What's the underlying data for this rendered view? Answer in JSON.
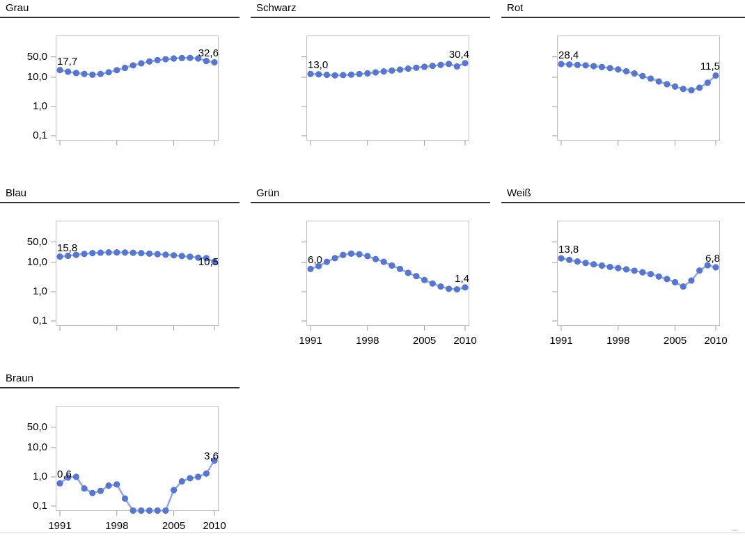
{
  "colors": {
    "marker": "#5676d4",
    "line": "#8ea6e8",
    "plot_border": "#c0c0c0",
    "tick": "#9b9b9b",
    "title_rule": "#2f2f2f",
    "text": "#000000",
    "bottom_edge": "#d9d9d9",
    "bottom_edge_tick": "#a8a8a8"
  },
  "axes": {
    "y_scale": "log",
    "y_ticks": [
      50,
      10,
      1,
      0.1
    ],
    "y_tick_labels": [
      "50,0",
      "10,0",
      "1,0",
      "0,1"
    ],
    "y_range_displayed": [
      0.07,
      170
    ],
    "x_range": [
      1991,
      2010
    ],
    "x_tick_years": [
      1991,
      1998,
      2005,
      2010
    ],
    "x_tick_labels": [
      "1991",
      "1998",
      "2005",
      "2010"
    ],
    "x_years": [
      1991,
      1992,
      1993,
      1994,
      1995,
      1996,
      1997,
      1998,
      1999,
      2000,
      2001,
      2002,
      2003,
      2004,
      2005,
      2006,
      2007,
      2008,
      2009,
      2010
    ],
    "grid": false,
    "legend": false
  },
  "chart_data": [
    {
      "type": "line",
      "title": "Grau",
      "slug": "grau",
      "row": 0,
      "col": 0,
      "show_y_tick_labels": true,
      "show_x_tick_labels": false,
      "first_point_label": "17,7",
      "last_point_label": "32,6",
      "values": [
        17.7,
        15.5,
        14.0,
        13.0,
        12.2,
        13.0,
        14.8,
        17.5,
        21.0,
        25.5,
        30.0,
        34.5,
        38.5,
        41.5,
        44.0,
        45.5,
        46.0,
        44.0,
        36.0,
        32.6
      ]
    },
    {
      "type": "line",
      "title": "Schwarz",
      "slug": "schwarz",
      "row": 0,
      "col": 1,
      "show_y_tick_labels": false,
      "show_x_tick_labels": false,
      "first_point_label": "13,0",
      "last_point_label": "30,4",
      "values": [
        13.0,
        12.6,
        12.1,
        11.6,
        11.9,
        12.3,
        12.9,
        13.6,
        14.7,
        15.8,
        17.0,
        18.3,
        19.7,
        21.2,
        22.8,
        24.6,
        26.5,
        28.5,
        23.5,
        30.4
      ]
    },
    {
      "type": "line",
      "title": "Rot",
      "slug": "rot",
      "row": 0,
      "col": 2,
      "show_y_tick_labels": false,
      "show_x_tick_labels": false,
      "first_point_label": "28,4",
      "last_point_label": "11,5",
      "values": [
        28.4,
        27.5,
        26.5,
        25.5,
        24.0,
        22.5,
        20.5,
        18.5,
        16.0,
        13.5,
        11.0,
        9.0,
        7.2,
        5.8,
        4.8,
        4.0,
        3.6,
        4.4,
        6.5,
        11.5
      ]
    },
    {
      "type": "line",
      "title": "Blau",
      "slug": "blau",
      "row": 1,
      "col": 0,
      "show_y_tick_labels": true,
      "show_x_tick_labels": false,
      "first_point_label": "15,8",
      "last_point_label": "10,5",
      "values": [
        15.8,
        16.8,
        18.2,
        19.6,
        20.8,
        21.6,
        22.0,
        22.0,
        21.8,
        21.4,
        20.8,
        20.0,
        19.2,
        18.4,
        17.5,
        16.6,
        15.6,
        14.6,
        14.0,
        10.5
      ]
    },
    {
      "type": "line",
      "title": "Grün",
      "slug": "gruen",
      "row": 1,
      "col": 1,
      "show_y_tick_labels": false,
      "show_x_tick_labels": true,
      "first_point_label": "6,0",
      "last_point_label": "1,4",
      "values": [
        6.0,
        7.5,
        10.5,
        14.0,
        18.0,
        20.0,
        19.0,
        16.5,
        13.0,
        10.5,
        7.8,
        6.0,
        4.4,
        3.4,
        2.5,
        1.9,
        1.5,
        1.25,
        1.2,
        1.4
      ]
    },
    {
      "type": "line",
      "title": "Weiß",
      "slug": "weiss",
      "row": 1,
      "col": 2,
      "show_y_tick_labels": false,
      "show_x_tick_labels": true,
      "first_point_label": "13,8",
      "last_point_label": "6,8",
      "values": [
        13.8,
        12.2,
        10.8,
        9.6,
        8.6,
        7.8,
        7.0,
        6.4,
        5.8,
        5.2,
        4.6,
        4.0,
        3.3,
        2.7,
        2.1,
        1.5,
        2.4,
        5.3,
        8.0,
        6.8
      ]
    },
    {
      "type": "line",
      "title": "Braun",
      "slug": "braun",
      "row": 2,
      "col": 0,
      "show_y_tick_labels": true,
      "show_x_tick_labels": true,
      "first_point_label": "0,6",
      "last_point_label": "3,6",
      "values": [
        0.6,
        0.95,
        1.0,
        0.4,
        0.28,
        0.33,
        0.5,
        0.55,
        0.18,
        0.07,
        0.07,
        0.07,
        0.07,
        0.07,
        0.35,
        0.7,
        0.9,
        1.0,
        1.3,
        3.6
      ]
    }
  ]
}
